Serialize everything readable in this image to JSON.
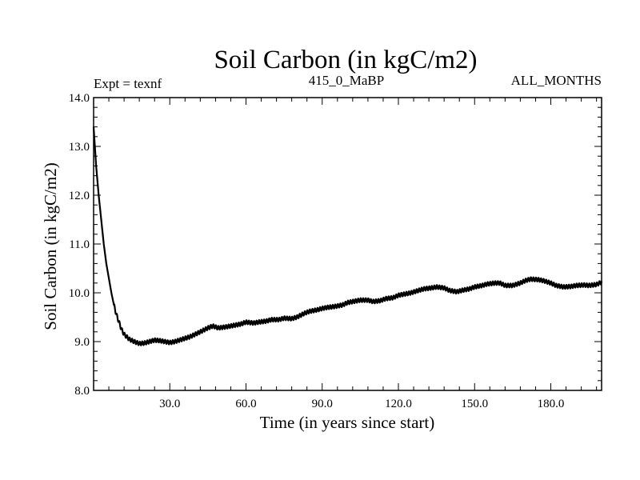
{
  "chart_data": {
    "type": "line",
    "title": "Soil Carbon (in kgC/m2)",
    "subtitle_left": "Expt = texnf",
    "subtitle_center": "415_0_MaBP",
    "subtitle_right": "ALL_MONTHS",
    "xlabel": "Time (in years since start)",
    "ylabel": "Soil Carbon (in kgC/m2)",
    "xlim": [
      0,
      200
    ],
    "ylim": [
      8.0,
      14.0
    ],
    "x_ticks": [
      30,
      60,
      90,
      120,
      150,
      180
    ],
    "x_tick_labels": [
      "30.0",
      "60.0",
      "90.0",
      "120.0",
      "150.0",
      "180.0"
    ],
    "y_ticks": [
      8,
      9,
      10,
      11,
      12,
      13,
      14
    ],
    "y_tick_labels": [
      "8.0",
      "9.0",
      "10.0",
      "11.0",
      "12.0",
      "13.0",
      "14.0"
    ],
    "seasonal_amplitude": 0.04,
    "series": [
      {
        "name": "Soil Carbon",
        "x": [
          0,
          1,
          2,
          3,
          4,
          5,
          6,
          7,
          8,
          9,
          10,
          11,
          12,
          14,
          16,
          18,
          20,
          22,
          24,
          26,
          28,
          30,
          32,
          35,
          38,
          40,
          42,
          45,
          47,
          49,
          52,
          55,
          58,
          60,
          63,
          65,
          68,
          70,
          73,
          75,
          78,
          80,
          83,
          85,
          88,
          90,
          92,
          95,
          98,
          100,
          103,
          105,
          108,
          110,
          113,
          115,
          118,
          120,
          123,
          125,
          128,
          130,
          133,
          135,
          138,
          140,
          143,
          145,
          148,
          150,
          153,
          155,
          158,
          160,
          162,
          165,
          168,
          170,
          172,
          175,
          177,
          180,
          182,
          185,
          188,
          190,
          193,
          195,
          198,
          200
        ],
        "y": [
          13.4,
          12.6,
          12.0,
          11.5,
          11.0,
          10.6,
          10.3,
          10.0,
          9.75,
          9.55,
          9.4,
          9.25,
          9.15,
          9.05,
          9.0,
          8.96,
          8.97,
          9.0,
          9.03,
          9.02,
          9.0,
          8.98,
          9.0,
          9.05,
          9.1,
          9.15,
          9.2,
          9.28,
          9.32,
          9.28,
          9.3,
          9.33,
          9.36,
          9.4,
          9.38,
          9.4,
          9.42,
          9.45,
          9.45,
          9.48,
          9.47,
          9.5,
          9.58,
          9.62,
          9.65,
          9.68,
          9.7,
          9.72,
          9.75,
          9.8,
          9.83,
          9.85,
          9.85,
          9.82,
          9.84,
          9.88,
          9.9,
          9.95,
          9.98,
          10.0,
          10.05,
          10.08,
          10.1,
          10.12,
          10.1,
          10.05,
          10.02,
          10.05,
          10.08,
          10.12,
          10.15,
          10.18,
          10.2,
          10.2,
          10.15,
          10.15,
          10.2,
          10.25,
          10.28,
          10.27,
          10.25,
          10.2,
          10.15,
          10.12,
          10.13,
          10.15,
          10.16,
          10.15,
          10.17,
          10.22
        ]
      }
    ]
  }
}
